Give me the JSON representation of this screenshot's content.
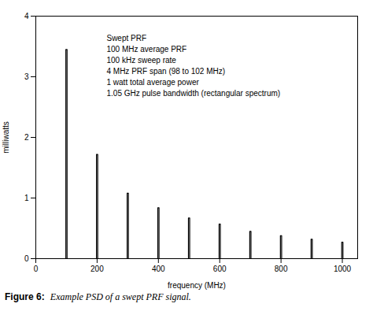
{
  "chart_data": {
    "type": "line",
    "xlabel": "frequency (MHz)",
    "ylabel": "milliwatts",
    "xlim": [
      0,
      1050
    ],
    "ylim": [
      0,
      4
    ],
    "xticks": [
      0,
      200,
      400,
      600,
      800,
      1000
    ],
    "yticks": [
      0,
      1,
      2,
      3,
      4
    ],
    "color": "#000000",
    "grid": false,
    "clusters": [
      {
        "x": [
          98,
          98,
          102,
          102
        ],
        "values": [
          0,
          3.45,
          3.45,
          0
        ]
      },
      {
        "x": [
          198,
          198,
          202,
          202
        ],
        "values": [
          0,
          1.72,
          1.72,
          0
        ]
      },
      {
        "x": [
          298,
          298,
          302,
          302
        ],
        "values": [
          0,
          1.08,
          1.08,
          0
        ]
      },
      {
        "x": [
          398,
          398,
          402,
          402
        ],
        "values": [
          0,
          0.84,
          0.84,
          0
        ]
      },
      {
        "x": [
          498,
          498,
          502,
          502
        ],
        "values": [
          0,
          0.67,
          0.67,
          0
        ]
      },
      {
        "x": [
          598,
          598,
          602,
          602
        ],
        "values": [
          0,
          0.57,
          0.57,
          0
        ]
      },
      {
        "x": [
          698,
          698,
          702,
          702
        ],
        "values": [
          0,
          0.45,
          0.45,
          0
        ]
      },
      {
        "x": [
          798,
          798,
          802,
          802
        ],
        "values": [
          0,
          0.38,
          0.38,
          0
        ]
      },
      {
        "x": [
          898,
          898,
          902,
          902
        ],
        "values": [
          0,
          0.32,
          0.32,
          0
        ]
      },
      {
        "x": [
          998,
          998,
          1002,
          1002
        ],
        "values": [
          0,
          0.27,
          0.27,
          0
        ]
      }
    ],
    "annotations": [
      "Swept PRF",
      "100 MHz average PRF",
      "100 kHz sweep rate",
      "4 MHz PRF span (98 to 102 MHz)",
      "1 watt total average power",
      "1.05 GHz pulse bandwidth (rectangular spectrum)"
    ],
    "caption_label": "Figure 6:",
    "caption": "Example PSD of a swept PRF signal."
  }
}
